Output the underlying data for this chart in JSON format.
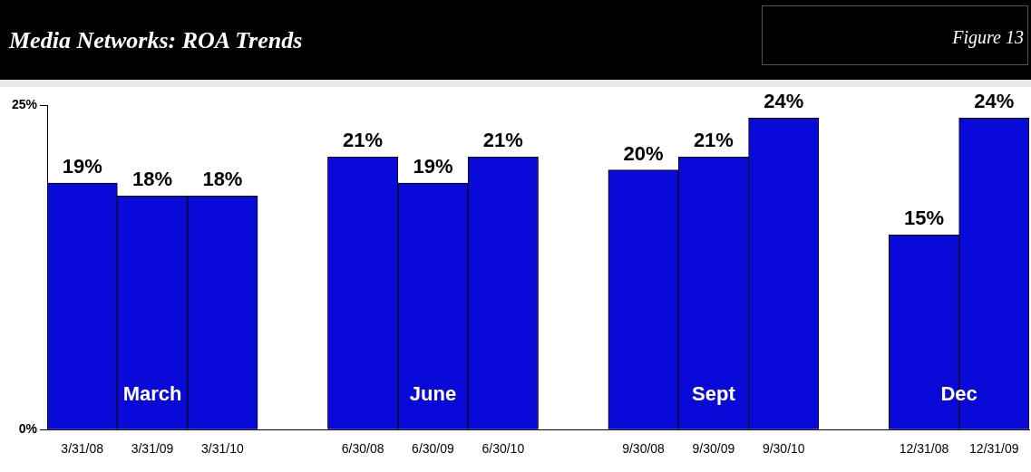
{
  "chart_data": {
    "type": "bar",
    "title": "Media Networks: ROA Trends",
    "categories": [
      "3/31/08",
      "3/31/09",
      "3/31/10",
      null,
      "6/30/08",
      "6/30/09",
      "6/30/10",
      null,
      "9/30/08",
      "9/30/09",
      "9/30/10",
      null,
      "12/31/08",
      "12/31/09"
    ],
    "values": [
      19,
      18,
      18,
      null,
      21,
      19,
      21,
      null,
      20,
      21,
      24,
      null,
      15,
      24
    ],
    "value_labels": [
      "19%",
      "18%",
      "18%",
      null,
      "21%",
      "19%",
      "21%",
      null,
      "20%",
      "21%",
      "24%",
      null,
      "15%",
      "24%"
    ],
    "color": "#0a0ad8",
    "ylim": [
      0,
      25
    ],
    "yticks": [
      {
        "value": 0,
        "label": "0%"
      },
      {
        "value": 25,
        "label": "25%"
      }
    ],
    "grid": false,
    "annotations": [
      "Figure 13",
      "March",
      "June",
      "Sept",
      "Dec"
    ]
  }
}
